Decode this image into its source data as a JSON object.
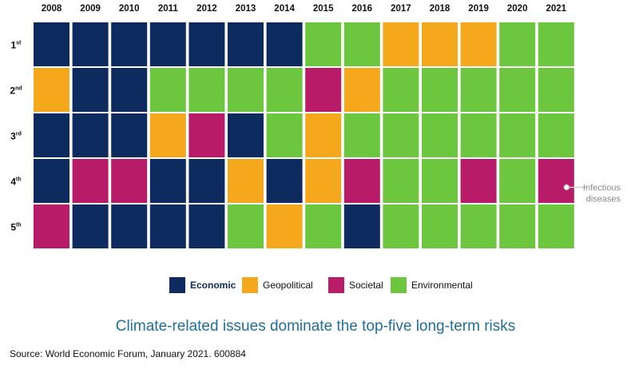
{
  "chart_data": {
    "type": "heatmap",
    "columns": [
      "2008",
      "2009",
      "2010",
      "2011",
      "2012",
      "2013",
      "2014",
      "2015",
      "2016",
      "2017",
      "2018",
      "2019",
      "2020",
      "2021"
    ],
    "rows": [
      {
        "base": "1",
        "suffix": "st"
      },
      {
        "base": "2",
        "suffix": "nd"
      },
      {
        "base": "3",
        "suffix": "rd"
      },
      {
        "base": "4",
        "suffix": "th"
      },
      {
        "base": "5",
        "suffix": "th"
      }
    ],
    "cells": [
      [
        "Economic",
        "Economic",
        "Economic",
        "Economic",
        "Economic",
        "Economic",
        "Economic",
        "Environmental",
        "Environmental",
        "Geopolitical",
        "Geopolitical",
        "Geopolitical",
        "Environmental",
        "Environmental"
      ],
      [
        "Geopolitical",
        "Economic",
        "Economic",
        "Environmental",
        "Environmental",
        "Environmental",
        "Environmental",
        "Societal",
        "Geopolitical",
        "Environmental",
        "Environmental",
        "Environmental",
        "Environmental",
        "Environmental"
      ],
      [
        "Economic",
        "Economic",
        "Economic",
        "Geopolitical",
        "Societal",
        "Economic",
        "Environmental",
        "Geopolitical",
        "Environmental",
        "Environmental",
        "Environmental",
        "Environmental",
        "Environmental",
        "Environmental"
      ],
      [
        "Economic",
        "Societal",
        "Societal",
        "Economic",
        "Economic",
        "Geopolitical",
        "Economic",
        "Geopolitical",
        "Societal",
        "Environmental",
        "Environmental",
        "Societal",
        "Environmental",
        "Societal"
      ],
      [
        "Societal",
        "Economic",
        "Economic",
        "Economic",
        "Economic",
        "Environmental",
        "Geopolitical",
        "Environmental",
        "Economic",
        "Environmental",
        "Environmental",
        "Environmental",
        "Environmental",
        "Environmental"
      ]
    ],
    "categories": [
      {
        "name": "Economic",
        "color": "#0d2b5e",
        "bold": true
      },
      {
        "name": "Geopolitical",
        "color": "#f5a81c",
        "bold": false
      },
      {
        "name": "Societal",
        "color": "#b81c68",
        "bold": false
      },
      {
        "name": "Environmental",
        "color": "#6cc63e",
        "bold": false
      }
    ],
    "annotation": {
      "lines": [
        "Infectious",
        "diseases"
      ],
      "row": 3,
      "column": 13
    },
    "legend_position": "bottom-center"
  },
  "caption": "Climate-related issues dominate the top-five long-term risks",
  "source": "Source: World Economic Forum, January 2021. 600884"
}
